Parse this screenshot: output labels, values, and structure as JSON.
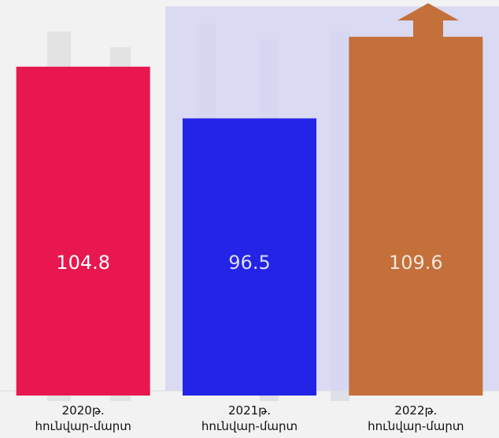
{
  "chart_data": {
    "type": "bar",
    "categories": [
      "2020թ.\nհունվար-մարտ",
      "2021թ.\nհունվար-մարտ",
      "2022թ.\nհունվար-մարտ"
    ],
    "values": [
      104.8,
      96.5,
      109.6
    ],
    "colors": [
      "#e8174f",
      "#2424e6",
      "#c4703a"
    ],
    "ylim": [
      52,
      115
    ]
  }
}
